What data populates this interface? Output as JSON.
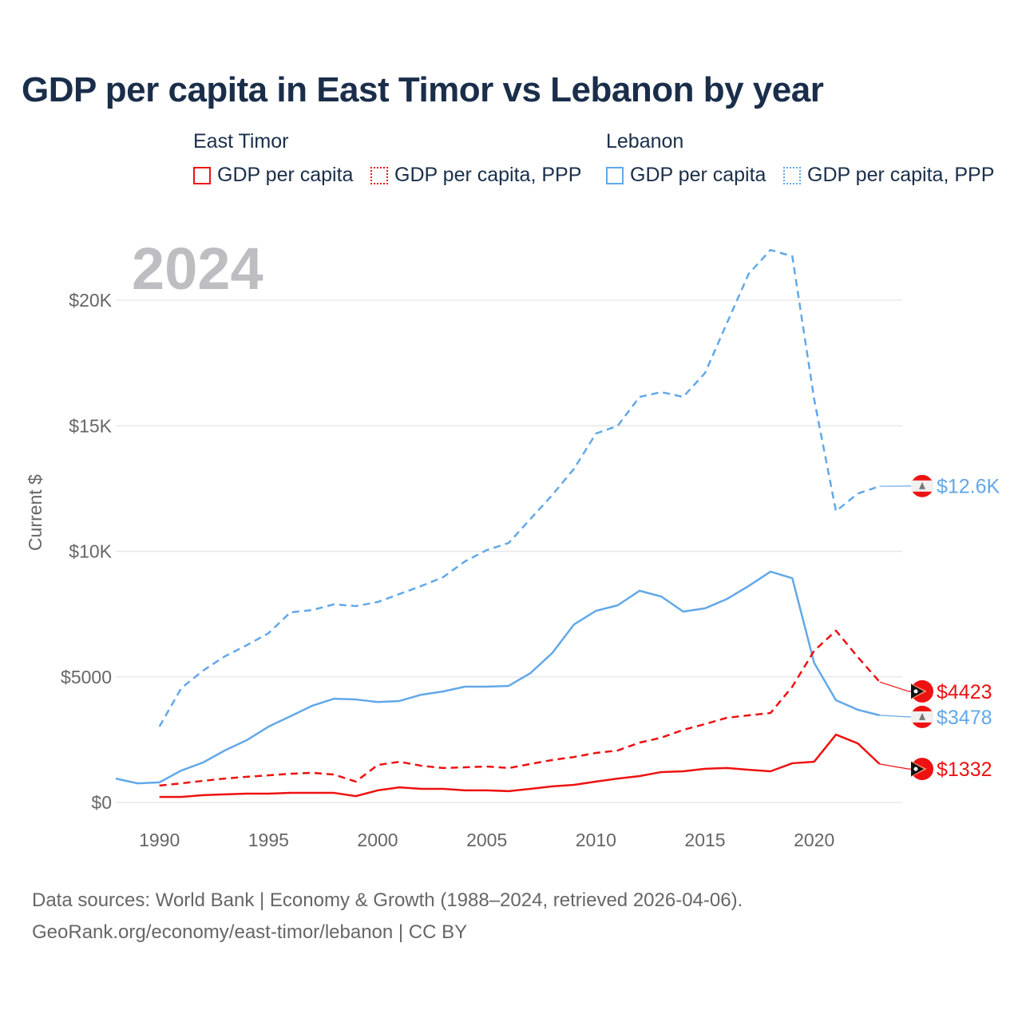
{
  "title": "GDP per capita in East Timor vs Lebanon by year",
  "legend": {
    "groups": [
      {
        "name": "East Timor",
        "items": [
          "GDP per capita",
          "GDP per capita, PPP"
        ]
      },
      {
        "name": "Lebanon",
        "items": [
          "GDP per capita",
          "GDP per capita, PPP"
        ]
      }
    ]
  },
  "footer": {
    "line1": "Data sources: World Bank | Economy & Growth (1988–2024, retrieved 2026-04-06).",
    "line2": "GeoRank.org/economy/east-timor/lebanon | CC BY"
  },
  "colors": {
    "east_timor": "#ee1111",
    "lebanon": "#62a8e8"
  },
  "chart_data": {
    "type": "line",
    "title": "GDP per capita in East Timor vs Lebanon by year",
    "year_label": "2024",
    "ylabel": "Current $",
    "xlim": [
      1988,
      2024
    ],
    "ylim": [
      0,
      22500
    ],
    "yticks": [
      {
        "v": 0,
        "label": "$0"
      },
      {
        "v": 5000,
        "label": "$5000"
      },
      {
        "v": 10000,
        "label": "$10K"
      },
      {
        "v": 15000,
        "label": "$15K"
      },
      {
        "v": 20000,
        "label": "$20K"
      }
    ],
    "xticks": [
      1990,
      1995,
      2000,
      2005,
      2010,
      2015,
      2020
    ],
    "grid": true,
    "series": [
      {
        "name": "Lebanon GDP per capita, PPP",
        "country": "lebanon",
        "dashed": true,
        "end_label": "$12.6K",
        "start": 1990,
        "values": [
          3020,
          4550,
          5250,
          5820,
          6260,
          6740,
          7570,
          7660,
          7890,
          7820,
          7980,
          8300,
          8620,
          8970,
          9600,
          10050,
          10330,
          11290,
          12240,
          13290,
          14690,
          15000,
          16150,
          16340,
          16150,
          17100,
          19080,
          21050,
          22000,
          21750,
          16060,
          11600,
          12300,
          12590,
          12600
        ]
      },
      {
        "name": "Lebanon GDP per capita",
        "country": "lebanon",
        "dashed": false,
        "end_label": "$3478",
        "start": 1988,
        "values": [
          950,
          760,
          800,
          1270,
          1590,
          2070,
          2480,
          3020,
          3430,
          3850,
          4130,
          4100,
          4000,
          4040,
          4290,
          4420,
          4610,
          4610,
          4640,
          5150,
          5950,
          7090,
          7630,
          7850,
          8430,
          8200,
          7600,
          7730,
          8100,
          8620,
          9190,
          8930,
          5560,
          4070,
          3690,
          3470,
          3478
        ]
      },
      {
        "name": "East Timor GDP per capita, PPP",
        "country": "east_timor",
        "dashed": true,
        "end_label": "$4423",
        "start": 1990,
        "values": [
          670,
          760,
          860,
          950,
          1020,
          1080,
          1140,
          1180,
          1110,
          830,
          1490,
          1620,
          1460,
          1370,
          1400,
          1430,
          1370,
          1530,
          1690,
          1810,
          1970,
          2070,
          2380,
          2580,
          2890,
          3120,
          3370,
          3470,
          3560,
          4610,
          6040,
          6840,
          5790,
          4800,
          4423
        ]
      },
      {
        "name": "East Timor GDP per capita",
        "country": "east_timor",
        "dashed": false,
        "end_label": "$1332",
        "start": 1990,
        "values": [
          220,
          220,
          290,
          320,
          350,
          350,
          380,
          380,
          380,
          250,
          480,
          600,
          540,
          540,
          480,
          480,
          450,
          540,
          640,
          700,
          830,
          950,
          1050,
          1210,
          1240,
          1340,
          1370,
          1300,
          1240,
          1560,
          1620,
          2700,
          2350,
          1530,
          1332
        ]
      }
    ]
  }
}
